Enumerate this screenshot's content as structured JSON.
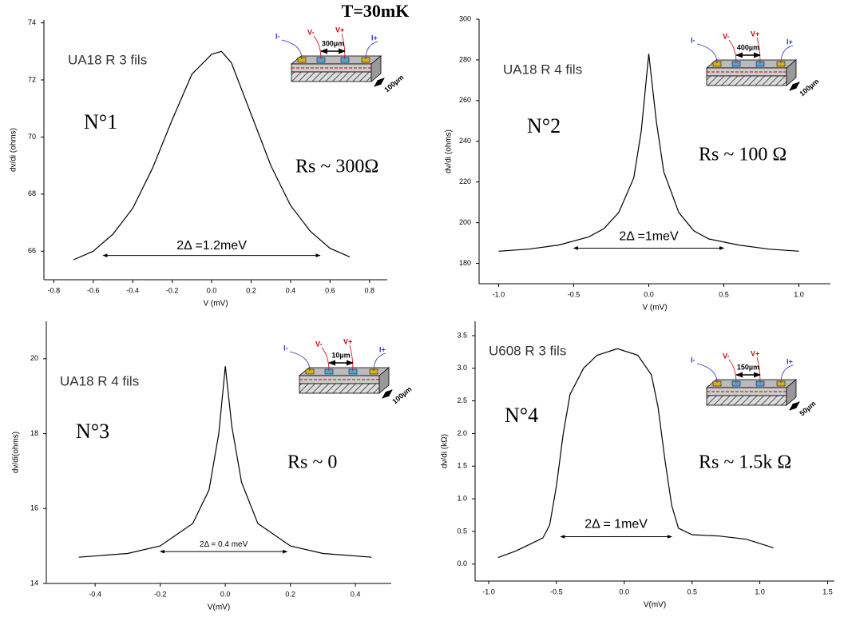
{
  "title": "T=30mK",
  "chart_data": [
    {
      "type": "line",
      "xlabel": "V (mV)",
      "ylabel": "dv/di (ohms)",
      "color": "#000000",
      "x": [
        -0.7,
        -0.6,
        -0.5,
        -0.4,
        -0.3,
        -0.2,
        -0.1,
        0,
        0.05,
        0.1,
        0.2,
        0.3,
        0.4,
        0.5,
        0.6,
        0.7
      ],
      "values": [
        65.7,
        66.0,
        66.6,
        67.5,
        68.9,
        70.6,
        72.2,
        72.9,
        73.0,
        72.6,
        70.8,
        69.0,
        67.6,
        66.7,
        66.1,
        65.8
      ],
      "xlim": [
        -0.85,
        0.89
      ],
      "ylim": [
        65,
        74.1
      ],
      "xticks": [
        -0.8,
        -0.6,
        -0.4,
        -0.2,
        {
          "value": 0,
          "label": "0.0"
        },
        0.2,
        0.4,
        0.6,
        0.8
      ],
      "yticks": [
        66,
        68,
        70,
        72,
        74
      ],
      "annotations": {
        "sample": "UA18 R 3 fils",
        "number": "N°1",
        "rs": "Rs ~ 300Ω",
        "gap": "2Δ =1.2meV"
      },
      "gap_arrow": {
        "x": [
          -0.55,
          0.55
        ],
        "y": 65.85
      },
      "inset": {
        "spacing": "300µm",
        "width": "100µm",
        "leads": [
          "I-",
          "V-",
          "V+",
          "I+"
        ]
      }
    },
    {
      "type": "line",
      "xlabel": "V (mV)",
      "ylabel": "dv/di (ohms)",
      "color": "#000000",
      "x": [
        -1.0,
        -0.8,
        -0.6,
        -0.4,
        -0.3,
        -0.2,
        -0.1,
        -0.05,
        0,
        0.05,
        0.1,
        0.2,
        0.3,
        0.4,
        0.6,
        0.8,
        1.0
      ],
      "values": [
        186,
        187,
        189,
        193,
        197,
        205,
        222,
        245,
        283,
        250,
        225,
        205,
        196,
        192,
        189,
        187,
        186
      ],
      "xlim": [
        -1.13,
        1.21
      ],
      "ylim": [
        170,
        300
      ],
      "xticks": [
        {
          "value": -1,
          "label": "-1.0"
        },
        -0.5,
        {
          "value": 0,
          "label": "0.0"
        },
        0.5,
        {
          "value": 1,
          "label": "1.0"
        }
      ],
      "yticks": [
        180,
        200,
        220,
        240,
        260,
        280,
        300
      ],
      "annotations": {
        "sample": "UA18 R 4 fils",
        "number": "N°2",
        "rs": "Rs ~ 100 Ω",
        "gap": "2Δ =1meV"
      },
      "gap_arrow": {
        "x": [
          -0.5,
          0.5
        ],
        "y": 187.5
      },
      "inset": {
        "spacing": "400µm",
        "width": "100µm",
        "leads": [
          "I-",
          "V-",
          "V+",
          "I+"
        ]
      }
    },
    {
      "type": "line",
      "xlabel": "V(mV)",
      "ylabel": "dv/di(ohms)",
      "color": "#000000",
      "x": [
        -0.45,
        -0.3,
        -0.2,
        -0.1,
        -0.05,
        -0.02,
        0,
        0.02,
        0.05,
        0.1,
        0.2,
        0.3,
        0.45
      ],
      "values": [
        14.7,
        14.8,
        15.0,
        15.6,
        16.5,
        18.0,
        19.8,
        18.2,
        16.7,
        15.6,
        15.0,
        14.8,
        14.7
      ],
      "xlim": [
        -0.55,
        0.51
      ],
      "ylim": [
        14,
        21
      ],
      "xticks": [
        -0.4,
        -0.2,
        {
          "value": 0,
          "label": "0.0"
        },
        0.2,
        0.4
      ],
      "yticks": [
        14,
        16,
        18,
        20
      ],
      "annotations": {
        "sample": "UA18 R 4 fils",
        "number": "N°3",
        "rs": "Rs ~ 0",
        "gap": "2Δ = 0.4 meV"
      },
      "gap_arrow": {
        "x": [
          -0.2,
          0.19
        ],
        "y": 14.85
      },
      "inset": {
        "spacing": "10µm",
        "width": "100µm",
        "leads": [
          "I-",
          "V-",
          "V+",
          "I+"
        ]
      }
    },
    {
      "type": "line",
      "xlabel": "V(mV)",
      "ylabel": "dv/di (kΩ)",
      "color": "#000000",
      "x": [
        -0.93,
        -0.8,
        -0.7,
        -0.6,
        -0.55,
        -0.5,
        -0.45,
        -0.4,
        -0.3,
        -0.2,
        -0.05,
        0.1,
        0.2,
        0.25,
        0.3,
        0.35,
        0.4,
        0.5,
        0.7,
        0.9,
        1.1
      ],
      "values": [
        0.1,
        0.2,
        0.3,
        0.4,
        0.6,
        1.2,
        2.0,
        2.6,
        3.0,
        3.2,
        3.3,
        3.2,
        2.9,
        2.4,
        1.6,
        0.9,
        0.55,
        0.45,
        0.43,
        0.38,
        0.25
      ],
      "xlim": [
        -1.1,
        1.55
      ],
      "ylim": [
        -0.26,
        3.72
      ],
      "xticks": [
        {
          "value": -1,
          "label": "-1.0"
        },
        -0.5,
        {
          "value": 0,
          "label": "0.0"
        },
        0.5,
        {
          "value": 1,
          "label": "1.0"
        },
        1.5
      ],
      "yticks": [
        {
          "value": 0,
          "label": "0.0"
        },
        0.5,
        {
          "value": 1,
          "label": "1.0"
        },
        1.5,
        {
          "value": 2,
          "label": "2.0"
        },
        2.5,
        {
          "value": 3,
          "label": "3.0"
        },
        3.5
      ],
      "annotations": {
        "sample": "U608  R 3 fils",
        "number": "N°4",
        "rs": "Rs ~ 1.5k Ω",
        "gap": "2Δ = 1meV"
      },
      "gap_arrow": {
        "x": [
          -0.47,
          0.35
        ],
        "y": 0.42
      },
      "inset": {
        "spacing": "150µm",
        "width": "50µm",
        "leads": [
          "I-",
          "V-",
          "V+",
          "I+"
        ]
      }
    }
  ]
}
